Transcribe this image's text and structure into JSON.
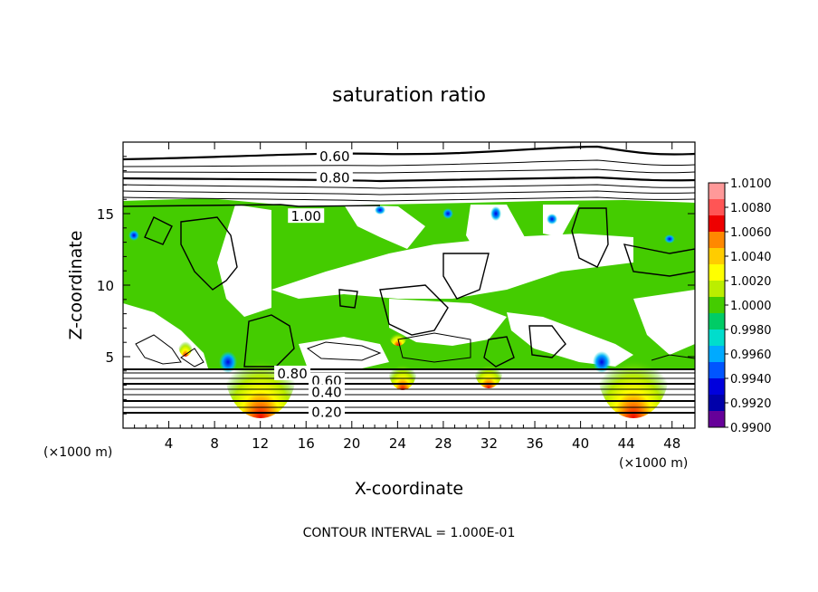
{
  "chart_data": {
    "type": "heatmap",
    "title": "saturation ratio",
    "xlabel": "X-coordinate",
    "ylabel": "Z-coordinate",
    "x_unit_left": "(×1000 m)",
    "x_unit_right": "(×1000 m)",
    "footer": "CONTOUR INTERVAL = 1.000E-01",
    "xlim": [
      0,
      50
    ],
    "ylim": [
      0,
      20
    ],
    "x_ticks": [
      4,
      8,
      12,
      16,
      20,
      24,
      28,
      32,
      36,
      40,
      44,
      48
    ],
    "x_tick_labels": [
      "4",
      "8",
      "12",
      "16",
      "20",
      "24",
      "28",
      "32",
      "36",
      "40",
      "44",
      "48"
    ],
    "y_ticks": [
      5,
      10,
      15
    ],
    "y_tick_labels": [
      "5",
      "10",
      "15"
    ],
    "colorbar": {
      "min": 0.99,
      "max": 1.01,
      "tick_labels": [
        "1.0100",
        "1.0080",
        "1.0060",
        "1.0040",
        "1.0020",
        "1.0000",
        "0.9980",
        "0.9960",
        "0.9940",
        "0.9920",
        "0.9900"
      ],
      "colors": [
        "#ff9999",
        "#ff5555",
        "#ee0000",
        "#ff8800",
        "#ffcc00",
        "#ffff00",
        "#bbee00",
        "#44cc00",
        "#00cc66",
        "#00ddcc",
        "#00aaff",
        "#0055ff",
        "#0000dd",
        "#0000aa",
        "#660099"
      ]
    },
    "contour_labels": [
      {
        "text": "0.60",
        "x": 18.5,
        "z": 19.0
      },
      {
        "text": "0.80",
        "x": 18.5,
        "z": 17.5
      },
      {
        "text": "1.00",
        "x": 16.0,
        "z": 14.8
      },
      {
        "text": "0.80",
        "x": 14.8,
        "z": 3.8
      },
      {
        "text": "0.60",
        "x": 17.8,
        "z": 3.3
      },
      {
        "text": "0.40",
        "x": 17.8,
        "z": 2.5
      },
      {
        "text": "0.20",
        "x": 17.8,
        "z": 1.1
      }
    ]
  }
}
